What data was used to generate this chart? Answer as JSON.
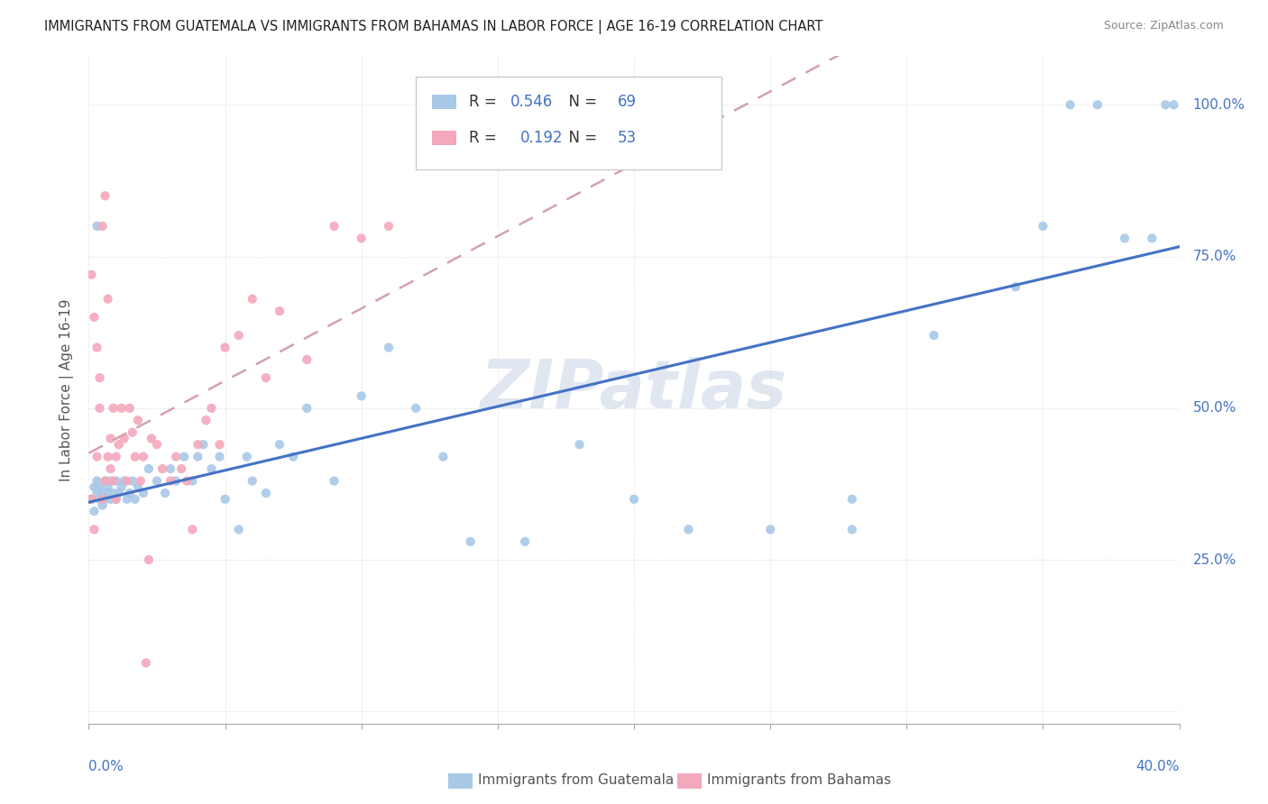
{
  "title": "IMMIGRANTS FROM GUATEMALA VS IMMIGRANTS FROM BAHAMAS IN LABOR FORCE | AGE 16-19 CORRELATION CHART",
  "source": "Source: ZipAtlas.com",
  "ylabel": "In Labor Force | Age 16-19",
  "xlim": [
    0.0,
    0.4
  ],
  "ylim": [
    -0.02,
    1.08
  ],
  "guatemala_R": 0.546,
  "guatemala_N": 69,
  "bahamas_R": 0.192,
  "bahamas_N": 53,
  "guatemala_color": "#a8c8e8",
  "bahamas_color": "#f4a8bc",
  "guatemala_line_color": "#4472c4",
  "bahamas_line_color": "#d4a0b0",
  "watermark": "ZIPatlas",
  "watermark_color": "#ccd8e8",
  "legend_label_guatemala": "Immigrants from Guatemala",
  "legend_label_bahamas": "Immigrants from Bahamas",
  "guatemala_x": [
    0.001,
    0.002,
    0.002,
    0.003,
    0.003,
    0.004,
    0.004,
    0.005,
    0.005,
    0.006,
    0.006,
    0.007,
    0.007,
    0.008,
    0.008,
    0.009,
    0.01,
    0.01,
    0.011,
    0.012,
    0.013,
    0.014,
    0.015,
    0.016,
    0.017,
    0.018,
    0.02,
    0.022,
    0.025,
    0.028,
    0.03,
    0.032,
    0.035,
    0.038,
    0.04,
    0.042,
    0.045,
    0.048,
    0.05,
    0.055,
    0.058,
    0.06,
    0.065,
    0.07,
    0.075,
    0.08,
    0.09,
    0.1,
    0.11,
    0.12,
    0.13,
    0.14,
    0.16,
    0.18,
    0.2,
    0.22,
    0.25,
    0.28,
    0.31,
    0.34,
    0.35,
    0.36,
    0.37,
    0.38,
    0.39,
    0.395,
    0.398,
    0.003,
    0.28
  ],
  "guatemala_y": [
    0.35,
    0.37,
    0.33,
    0.36,
    0.38,
    0.35,
    0.37,
    0.34,
    0.36,
    0.35,
    0.38,
    0.36,
    0.37,
    0.35,
    0.38,
    0.36,
    0.35,
    0.38,
    0.36,
    0.37,
    0.38,
    0.35,
    0.36,
    0.38,
    0.35,
    0.37,
    0.36,
    0.4,
    0.38,
    0.36,
    0.4,
    0.38,
    0.42,
    0.38,
    0.42,
    0.44,
    0.4,
    0.42,
    0.35,
    0.3,
    0.42,
    0.38,
    0.36,
    0.44,
    0.42,
    0.5,
    0.38,
    0.52,
    0.6,
    0.5,
    0.42,
    0.28,
    0.28,
    0.44,
    0.35,
    0.3,
    0.3,
    0.3,
    0.62,
    0.7,
    0.8,
    1.0,
    1.0,
    0.78,
    0.78,
    1.0,
    1.0,
    0.8,
    0.35
  ],
  "bahamas_x": [
    0.001,
    0.001,
    0.002,
    0.002,
    0.003,
    0.003,
    0.004,
    0.004,
    0.005,
    0.005,
    0.006,
    0.006,
    0.007,
    0.007,
    0.008,
    0.008,
    0.009,
    0.009,
    0.01,
    0.01,
    0.011,
    0.012,
    0.013,
    0.014,
    0.015,
    0.016,
    0.017,
    0.018,
    0.019,
    0.02,
    0.021,
    0.022,
    0.023,
    0.025,
    0.027,
    0.03,
    0.032,
    0.034,
    0.036,
    0.038,
    0.04,
    0.043,
    0.045,
    0.048,
    0.05,
    0.055,
    0.06,
    0.065,
    0.07,
    0.08,
    0.09,
    0.1,
    0.11
  ],
  "bahamas_y": [
    0.72,
    0.35,
    0.65,
    0.3,
    0.6,
    0.42,
    0.55,
    0.5,
    0.8,
    0.35,
    0.85,
    0.38,
    0.68,
    0.42,
    0.4,
    0.45,
    0.5,
    0.38,
    0.42,
    0.35,
    0.44,
    0.5,
    0.45,
    0.38,
    0.5,
    0.46,
    0.42,
    0.48,
    0.38,
    0.42,
    0.08,
    0.25,
    0.45,
    0.44,
    0.4,
    0.38,
    0.42,
    0.4,
    0.38,
    0.3,
    0.44,
    0.48,
    0.5,
    0.44,
    0.6,
    0.62,
    0.68,
    0.55,
    0.66,
    0.58,
    0.8,
    0.78,
    0.8
  ],
  "ytick_positions": [
    0.0,
    0.25,
    0.5,
    0.75,
    1.0
  ],
  "ytick_labels": [
    "",
    "25.0%",
    "50.0%",
    "75.0%",
    "100.0%"
  ],
  "xtick_positions": [
    0.0,
    0.05,
    0.1,
    0.15,
    0.2,
    0.25,
    0.3,
    0.35,
    0.4
  ],
  "grid_color": "#dddddd",
  "spine_color": "#aaaaaa",
  "tick_label_color": "#4472c4",
  "title_color": "#222222",
  "ylabel_color": "#555555",
  "source_color": "#888888",
  "legend_border_color": "#cccccc",
  "legend_bg_color": "#ffffff"
}
